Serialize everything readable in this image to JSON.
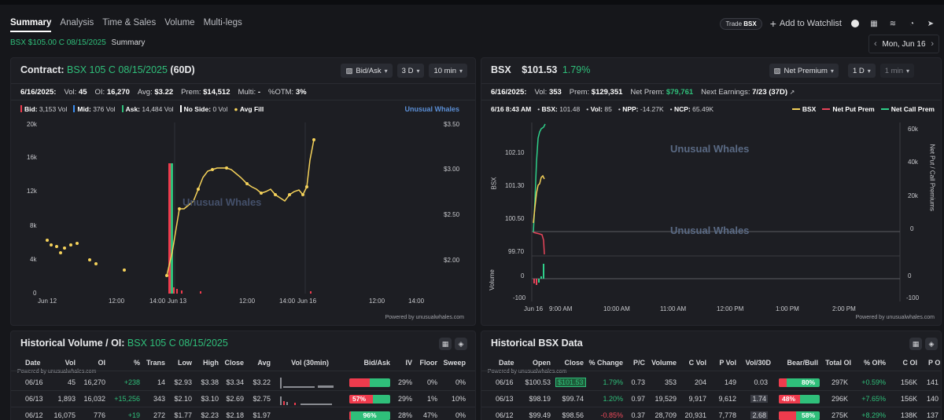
{
  "tabs": [
    "Summary",
    "Analysis",
    "Time & Sales",
    "Volume",
    "Multi-legs"
  ],
  "breadcrumb": {
    "contract": "BSX $105.00 C 08/15/2025",
    "page": "Summary"
  },
  "header": {
    "trade_prefix": "Trade",
    "trade_symbol": "BSX",
    "add_watchlist": "Add to Watchlist",
    "date": "Mon, Jun 16"
  },
  "contract_panel": {
    "title_prefix": "Contract:",
    "title_contract": "BSX 105 C 08/15/2025",
    "title_days": "(60D)",
    "ctrl_side": "Bid/Ask",
    "ctrl_range": "3 D",
    "ctrl_interval": "10 min",
    "stats": {
      "date": "6/16/2025:",
      "vol_label": "Vol:",
      "vol": "45",
      "oi_label": "OI:",
      "oi": "16,270",
      "avg_label": "Avg:",
      "avg": "$3.22",
      "prem_label": "Prem:",
      "prem": "$14,512",
      "multi_label": "Multi:",
      "multi": "-",
      "otm_label": "%OTM:",
      "otm": "3%"
    },
    "legend": {
      "bid_label": "Bid:",
      "bid": "3,153 Vol",
      "mid_label": "Mid:",
      "mid": "376 Vol",
      "ask_label": "Ask:",
      "ask": "14,484 Vol",
      "noside_label": "No Side:",
      "noside": "0 Vol",
      "avgfill": "Avg Fill"
    },
    "watermark": "Unusual Whales",
    "watermark_inner": "Unusual Whales",
    "y_left_ticks": [
      "20k",
      "16k",
      "12k",
      "8k",
      "4k",
      "0"
    ],
    "y_right_ticks": [
      "$3.50",
      "$3.00",
      "$2.50",
      "$2.00"
    ],
    "x_ticks": [
      "Jun 12",
      "12:00",
      "14:00",
      "Jun 13",
      "12:00",
      "14:00",
      "Jun 16",
      "12:00",
      "14:00"
    ],
    "powered": "Powered by unusualwhales.com"
  },
  "stock_panel": {
    "symbol": "BSX",
    "price": "$101.53",
    "change": "1.79%",
    "ctrl_metric": "Net Premium",
    "ctrl_range": "1 D",
    "ctrl_interval": "1 min",
    "stats": {
      "date": "6/16/2025:",
      "vol_label": "Vol:",
      "vol": "353",
      "prem_label": "Prem:",
      "prem": "$129,351",
      "netprem_label": "Net Prem:",
      "netprem": "$79,761",
      "earn_label": "Next Earnings:",
      "earn": "7/23 (37D)"
    },
    "legend": {
      "time": "6/16 8:43 AM",
      "bsx_label": "BSX:",
      "bsx": "101.48",
      "vol_label": "Vol:",
      "vol": "85",
      "npp_label": "NPP:",
      "npp": "-14.27K",
      "ncp_label": "NCP:",
      "ncp": "65.49K",
      "s_bsx": "BSX",
      "s_npp": "Net Put Prem",
      "s_ncp": "Net Call Prem"
    },
    "watermark": "Unusual Whales",
    "y_left_ticks": [
      "102.10",
      "101.30",
      "100.50",
      "99.70"
    ],
    "y_left_label": "BSX",
    "y_right_ticks": [
      "60k",
      "40k",
      "20k",
      "0"
    ],
    "y_right_label": "Net Put / Call Premiums",
    "vol_ticks": [
      "0",
      "-100"
    ],
    "vol_right_ticks": [
      "0",
      "-100"
    ],
    "vol_label": "Volume",
    "x_ticks": [
      "Jun 16",
      "9:00 AM",
      "10:00 AM",
      "11:00 AM",
      "12:00 PM",
      "1:00 PM",
      "2:00 PM"
    ],
    "powered": "Powered by unusualwhales.com"
  },
  "hist_vol": {
    "title": "Historical Volume / OI:",
    "contract": "BSX 105 C 08/15/2025",
    "columns": [
      "Date",
      "Vol",
      "OI",
      "%",
      "Trans",
      "Low",
      "High",
      "Close",
      "Avg",
      "Vol (30min)",
      "Bid/Ask",
      "IV",
      "Floor",
      "Sweep"
    ],
    "powered": "Powered by unusualwhales.com",
    "rows": [
      {
        "date": "06/16",
        "vol": "45",
        "oi": "16,270",
        "pct": "+238",
        "trans": "14",
        "low": "$2.93",
        "high": "$3.38",
        "close": "$3.34",
        "avg": "$3.22",
        "ba": "",
        "iv": "29%",
        "floor": "0%",
        "sweep": "0%"
      },
      {
        "date": "06/13",
        "vol": "1,893",
        "oi": "16,032",
        "pct": "+15,256",
        "trans": "343",
        "low": "$2.10",
        "high": "$3.10",
        "close": "$2.69",
        "avg": "$2.75",
        "ba": "57%",
        "iv": "29%",
        "floor": "1%",
        "sweep": "10%"
      },
      {
        "date": "06/12",
        "vol": "16,075",
        "oi": "776",
        "pct": "+19",
        "trans": "272",
        "low": "$1.77",
        "high": "$2.23",
        "close": "$2.18",
        "avg": "$1.97",
        "ba": "96%",
        "iv": "28%",
        "floor": "47%",
        "sweep": "0%"
      }
    ]
  },
  "hist_bsx": {
    "title": "Historical BSX Data",
    "columns": [
      "Date",
      "Open",
      "Close",
      "% Change",
      "P/C",
      "Volume",
      "C Vol",
      "P Vol",
      "Vol/30D",
      "Bear/Bull",
      "Total OI",
      "% OI%",
      "C OI",
      "P OI"
    ],
    "powered": "Powered by unusualwhales.com",
    "rows": [
      {
        "date": "06/16",
        "open": "$100.53",
        "close": "$101.53",
        "chg": "1.79%",
        "pc": "0.73",
        "volume": "353",
        "cvol": "204",
        "pvol": "149",
        "v30": "0.03",
        "bb": "80%",
        "toi": "297K",
        "oip": "+0.59%",
        "coi": "156K",
        "poi": "141"
      },
      {
        "date": "06/13",
        "open": "$98.19",
        "close": "$99.74",
        "chg": "1.20%",
        "pc": "0.97",
        "volume": "19,529",
        "cvol": "9,917",
        "pvol": "9,612",
        "v30": "1.74",
        "bb": "48%",
        "toi": "296K",
        "oip": "+7.65%",
        "coi": "156K",
        "poi": "140"
      },
      {
        "date": "06/12",
        "open": "$99.49",
        "close": "$98.56",
        "chg": "-0.85%",
        "pc": "0.37",
        "volume": "28,709",
        "cvol": "20,931",
        "pvol": "7,778",
        "v30": "2.68",
        "bb": "58%",
        "toi": "275K",
        "oip": "+8.29%",
        "coi": "138K",
        "poi": "137"
      }
    ]
  },
  "colors": {
    "accent_green": "#2fbf7a",
    "bid_red": "#ef3b4d",
    "mid_blue": "#3b8ef0",
    "avg_yellow": "#f5d25a",
    "put_red": "#e8455a",
    "call_green": "#2fd08a"
  },
  "chart_data": [
    {
      "type": "line",
      "title": "Contract: BSX 105 C 08/15/2025 (60D)",
      "series": [
        {
          "name": "Avg Fill",
          "x": [
            "Jun 12 09:40",
            "Jun 12 10:00",
            "Jun 12 10:20",
            "Jun 12 10:40",
            "Jun 12 11:00",
            "Jun 12 11:30",
            "Jun 12 11:50",
            "Jun 12 13:00",
            "Jun 13 09:40",
            "Jun 13 10:00",
            "Jun 13 10:20",
            "Jun 13 11:00",
            "Jun 13 12:00",
            "Jun 13 13:00",
            "Jun 13 14:00",
            "Jun 13 15:00",
            "Jun 16 10:00",
            "Jun 16 10:30"
          ],
          "values": [
            2.23,
            2.17,
            2.06,
            2.15,
            2.18,
            2.0,
            1.97,
            1.93,
            1.87,
            2.57,
            2.79,
            2.65,
            3.0,
            2.95,
            2.8,
            2.82,
            2.65,
            3.38
          ]
        }
      ],
      "ylim_price": [
        1.75,
        3.55
      ],
      "ylim_volume": [
        0,
        20000
      ]
    },
    {
      "type": "line",
      "title": "BSX $101.53 1.79%",
      "series": [
        {
          "name": "BSX",
          "x": [
            "9:30",
            "9:32",
            "9:34",
            "9:36",
            "9:38",
            "9:40"
          ],
          "values": [
            99.8,
            100.6,
            101.0,
            101.3,
            101.5,
            101.4
          ]
        },
        {
          "name": "Net Put Prem",
          "x": [
            "9:30",
            "9:35",
            "9:40"
          ],
          "values": [
            0,
            -2000,
            -14270
          ]
        },
        {
          "name": "Net Call Prem",
          "x": [
            "9:30",
            "9:35",
            "9:40"
          ],
          "values": [
            0,
            55000,
            65490
          ]
        }
      ],
      "ylim": [
        99.5,
        102.5
      ]
    }
  ]
}
